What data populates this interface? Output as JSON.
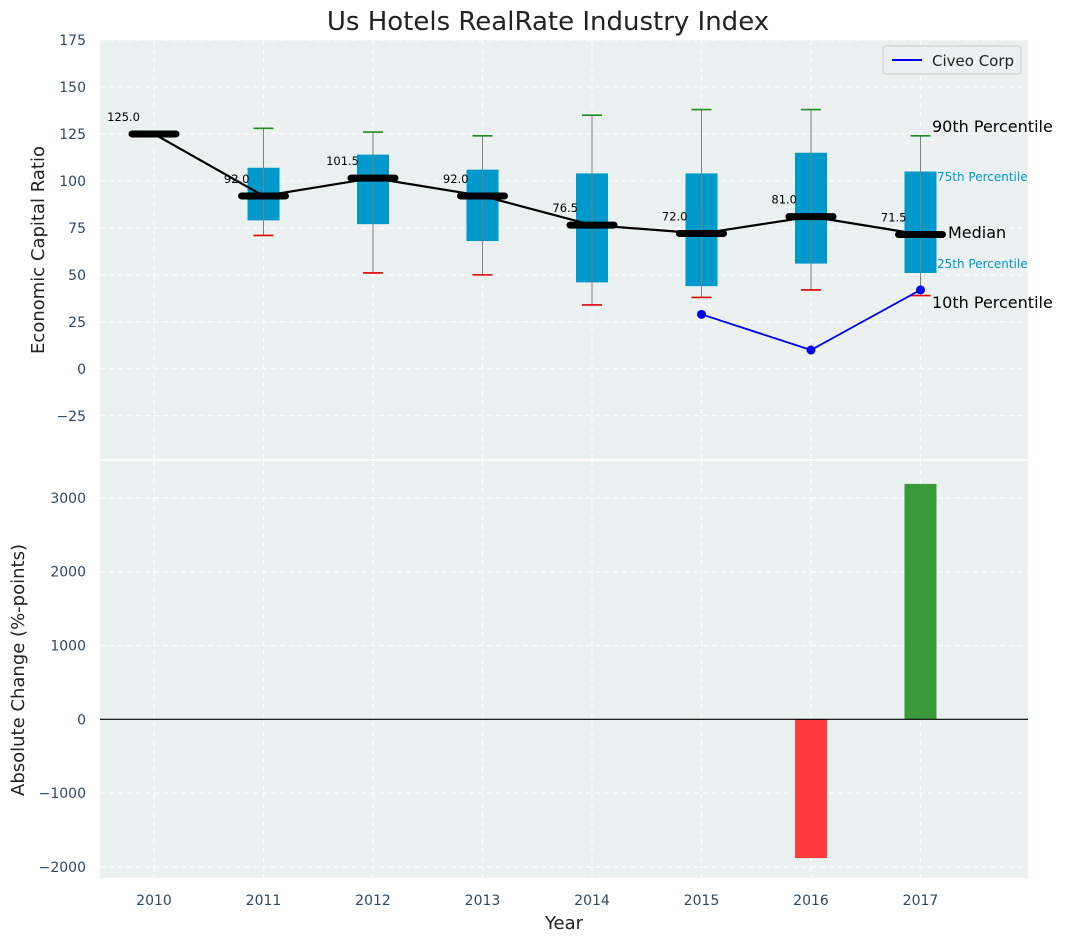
{
  "chart_data": [
    {
      "type": "box",
      "title": "Us Hotels RealRate Industry Index",
      "ylabel": "Economic Capital Ratio",
      "xlabel": "",
      "ylim": [
        -48,
        175
      ],
      "y_ticks": [
        -25,
        0,
        25,
        50,
        75,
        100,
        125,
        150,
        175
      ],
      "y_tick_labels": [
        "−25",
        "0",
        "25",
        "50",
        "75",
        "100",
        "125",
        "150",
        "175"
      ],
      "grid": true,
      "categories": [
        "2010",
        "2011",
        "2012",
        "2013",
        "2014",
        "2015",
        "2016",
        "2017"
      ],
      "boxes": [
        {
          "year": "2010",
          "p10": 125.0,
          "p25": 125.0,
          "median": 125.0,
          "p75": 125.0,
          "p90": 125.0
        },
        {
          "year": "2011",
          "p10": 71,
          "p25": 79,
          "median": 92.0,
          "p75": 107,
          "p90": 128
        },
        {
          "year": "2012",
          "p10": 51,
          "p25": 77,
          "median": 101.5,
          "p75": 114,
          "p90": 126
        },
        {
          "year": "2013",
          "p10": 50,
          "p25": 68,
          "median": 92.0,
          "p75": 106,
          "p90": 124
        },
        {
          "year": "2014",
          "p10": 34,
          "p25": 46,
          "median": 76.5,
          "p75": 104,
          "p90": 135
        },
        {
          "year": "2015",
          "p10": 38,
          "p25": 44,
          "median": 72.0,
          "p75": 104,
          "p90": 138
        },
        {
          "year": "2016",
          "p10": 42,
          "p25": 56,
          "median": 81.0,
          "p75": 115,
          "p90": 138
        },
        {
          "year": "2017",
          "p10": 39,
          "p25": 51,
          "median": 71.5,
          "p75": 105,
          "p90": 124
        }
      ],
      "median_labels": [
        "125.0",
        "92.0",
        "101.5",
        "92.0",
        "76.5",
        "72.0",
        "81.0",
        "71.5"
      ],
      "company_series": {
        "name": "Civeo Corp",
        "color": "#0000ee",
        "points": [
          {
            "year": "2015",
            "value": 29
          },
          {
            "year": "2016",
            "value": 10
          },
          {
            "year": "2017",
            "value": 42
          }
        ]
      },
      "legend": {
        "position": "top-right",
        "entries": [
          "Civeo Corp"
        ]
      },
      "annotations": {
        "p90": "90th Percentile",
        "p75": "75th Percentile",
        "median": "Median",
        "p25": "25th Percentile",
        "p10": "10th Percentile"
      },
      "colors": {
        "box": "#0099cc",
        "median": "#000000",
        "upper_cap": "#228b22",
        "lower_cap": "#dd0000",
        "whisker": "#808080",
        "background": "#ebf0f0",
        "pct_label": "#0099cc",
        "axis_text": "#2e4a62"
      }
    },
    {
      "type": "bar",
      "ylabel": "Absolute Change (%-points)",
      "xlabel": "Year",
      "ylim": [
        -2150,
        3500
      ],
      "y_ticks": [
        -2000,
        -1000,
        0,
        1000,
        2000,
        3000
      ],
      "y_tick_labels": [
        "−2000",
        "−1000",
        "0",
        "1000",
        "2000",
        "3000"
      ],
      "grid": true,
      "categories": [
        "2010",
        "2011",
        "2012",
        "2013",
        "2014",
        "2015",
        "2016",
        "2017"
      ],
      "values": [
        null,
        null,
        null,
        null,
        null,
        null,
        -1880,
        3190
      ],
      "colors": {
        "positive": "#3a9a3a",
        "negative": "#ff3b3b"
      }
    }
  ]
}
